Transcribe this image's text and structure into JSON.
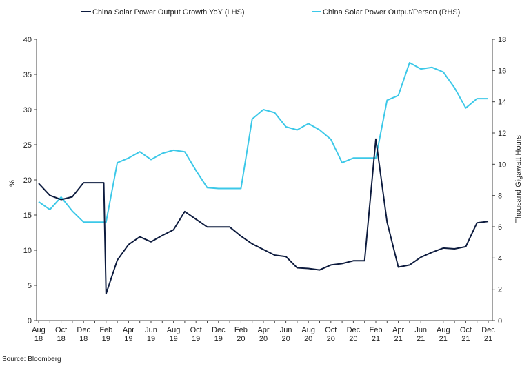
{
  "chart_data": {
    "type": "line",
    "source": "Source: Bloomberg",
    "x_tick_labels": [
      [
        "Aug",
        "18"
      ],
      [
        "Oct",
        "18"
      ],
      [
        "Dec",
        "18"
      ],
      [
        "Feb",
        "19"
      ],
      [
        "Apr",
        "19"
      ],
      [
        "Jun",
        "19"
      ],
      [
        "Aug",
        "19"
      ],
      [
        "Oct",
        "19"
      ],
      [
        "Dec",
        "19"
      ],
      [
        "Feb",
        "20"
      ],
      [
        "Apr",
        "20"
      ],
      [
        "Jun",
        "20"
      ],
      [
        "Aug",
        "20"
      ],
      [
        "Oct",
        "20"
      ],
      [
        "Dec",
        "20"
      ],
      [
        "Feb",
        "21"
      ],
      [
        "Apr",
        "21"
      ],
      [
        "Jun",
        "21"
      ],
      [
        "Aug",
        "21"
      ],
      [
        "Oct",
        "21"
      ],
      [
        "Dec",
        "21"
      ]
    ],
    "x": [
      "2018-08",
      "2018-09",
      "2018-10",
      "2018-11",
      "2018-12",
      "2019-01",
      "2019-02",
      "2019-03",
      "2019-04",
      "2019-05",
      "2019-06",
      "2019-07",
      "2019-08",
      "2019-09",
      "2019-10",
      "2019-11",
      "2019-12",
      "2020-01",
      "2020-02",
      "2020-03",
      "2020-04",
      "2020-05",
      "2020-06",
      "2020-07",
      "2020-08",
      "2020-09",
      "2020-10",
      "2020-11",
      "2020-12",
      "2021-01",
      "2021-02",
      "2021-03",
      "2021-04",
      "2021-05",
      "2021-06",
      "2021-07",
      "2021-08",
      "2021-09",
      "2021-10",
      "2021-11",
      "2021-12"
    ],
    "y_left": {
      "label": "%",
      "min": 0,
      "max": 40,
      "ticks": [
        0,
        5,
        10,
        15,
        20,
        25,
        30,
        35,
        40
      ]
    },
    "y_right": {
      "label": "Thousand Gigawatt Hours",
      "min": 0,
      "max": 18,
      "ticks": [
        0,
        2,
        4,
        6,
        8,
        10,
        12,
        14,
        16,
        18
      ]
    },
    "grid": false,
    "legend_position": "top",
    "series": [
      {
        "name": "China Solar Power Output Growth YoY (LHS)",
        "axis": "left",
        "color": "#0d1b3e",
        "x": [
          "2018-08",
          "2018-09",
          "2018-10",
          "2018-11",
          "2018-12",
          "2019-01",
          "2019-01-25",
          "2019-02",
          "2019-03",
          "2019-04",
          "2019-05",
          "2019-06",
          "2019-07",
          "2019-08",
          "2019-09",
          "2019-10",
          "2019-11",
          "2019-12",
          "2020-01",
          "2020-02",
          "2020-03",
          "2020-04",
          "2020-05",
          "2020-06",
          "2020-07",
          "2020-08",
          "2020-09",
          "2020-10",
          "2020-11",
          "2020-12",
          "2021-01",
          "2021-02",
          "2021-03",
          "2021-04",
          "2021-05",
          "2021-06",
          "2021-07",
          "2021-08",
          "2021-09",
          "2021-10",
          "2021-11",
          "2021-12"
        ],
        "values": [
          19.5,
          17.8,
          17.2,
          17.6,
          19.6,
          19.6,
          19.6,
          3.8,
          8.6,
          10.8,
          11.9,
          11.2,
          12.1,
          12.9,
          15.5,
          14.4,
          13.3,
          13.3,
          13.3,
          12.0,
          10.9,
          10.1,
          9.3,
          9.1,
          7.5,
          7.4,
          7.2,
          7.9,
          8.1,
          8.5,
          8.5,
          25.8,
          14.0,
          7.6,
          7.9,
          9.0,
          9.7,
          10.3,
          10.2,
          10.5,
          13.9,
          14.1
        ]
      },
      {
        "name": "China Solar Power Output/Person (RHS)",
        "axis": "right",
        "color": "#3cc8e8",
        "x": [
          "2018-08",
          "2018-09",
          "2018-10",
          "2018-11",
          "2018-12",
          "2019-01",
          "2019-02",
          "2019-03",
          "2019-04",
          "2019-05",
          "2019-06",
          "2019-07",
          "2019-08",
          "2019-09",
          "2019-10",
          "2019-11",
          "2019-12",
          "2020-01",
          "2020-02",
          "2020-03",
          "2020-04",
          "2020-05",
          "2020-06",
          "2020-07",
          "2020-08",
          "2020-09",
          "2020-10",
          "2020-11",
          "2020-12",
          "2021-01",
          "2021-02",
          "2021-03",
          "2021-04",
          "2021-05",
          "2021-06",
          "2021-07",
          "2021-08",
          "2021-09",
          "2021-10",
          "2021-11",
          "2021-12"
        ],
        "values": [
          7.6,
          7.1,
          7.9,
          7.0,
          6.3,
          6.3,
          6.3,
          10.1,
          10.4,
          10.8,
          10.3,
          10.7,
          10.9,
          10.8,
          9.6,
          8.5,
          8.45,
          8.45,
          8.45,
          12.9,
          13.5,
          13.3,
          12.4,
          12.2,
          12.6,
          12.2,
          11.6,
          10.1,
          10.4,
          10.4,
          10.4,
          14.1,
          14.4,
          16.5,
          16.1,
          16.2,
          15.9,
          14.9,
          13.6,
          14.2,
          14.2
        ]
      }
    ]
  }
}
